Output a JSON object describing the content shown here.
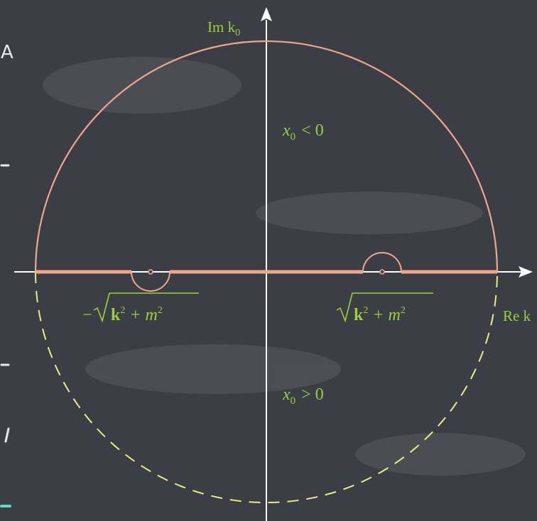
{
  "colors": {
    "board": "#3b3f45",
    "axis": "#ffffff",
    "contour_upper": "#f2a58a",
    "contour_lower": "#ecec80",
    "label": "#9ccf3c",
    "chalk": "#e9e9e9",
    "chalk_accent": "#5fd8c4"
  },
  "axes": {
    "imaginary_axis_label": "Im k",
    "imaginary_axis_subscript": "0",
    "real_axis_label": "Re k"
  },
  "regions": {
    "upper_half_label": "x",
    "upper_half_subscript": "0",
    "upper_half_relation": "< 0",
    "lower_half_label": "x",
    "lower_half_subscript": "0",
    "lower_half_relation": "> 0"
  },
  "poles": {
    "left_sign": "−",
    "left_radicand": "k",
    "left_rest": "+ m",
    "right_radicand": "k",
    "right_rest": "+ m",
    "exponent": "2"
  },
  "margin_chalk": {
    "top_letter": "A"
  }
}
